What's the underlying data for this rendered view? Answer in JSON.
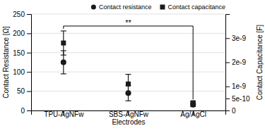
{
  "chart_data": {
    "type": "scatter",
    "categories": [
      "TPU-AgNFw",
      "SBS-AgNFw\nElectrodes",
      "Ag/AgCl"
    ],
    "series": [
      {
        "name": "Contact resistance",
        "color": "#1a1a1a",
        "marker": "circle",
        "values": [
          125,
          45,
          15
        ],
        "error_low": [
          30,
          20,
          5
        ],
        "error_high": [
          30,
          20,
          5
        ]
      },
      {
        "name": "Contact capacitance",
        "color": "#1a1a1a",
        "marker": "square",
        "axis": "y2",
        "values": [
          2.8e-09,
          1.1e-09,
          3.2e-10
        ],
        "error_low": [
          5e-10,
          4e-10,
          5e-11
        ],
        "error_high": [
          5e-10,
          4e-10,
          5e-11
        ]
      }
    ],
    "ylabel": "Contact Resistance [Ω]",
    "y2label": "Contact Capacitance [F]",
    "ylim": [
      0,
      250
    ],
    "yticks": [
      0,
      50,
      100,
      150,
      200,
      250
    ],
    "y2lim": [
      0,
      4e-09
    ],
    "y2ticks": [
      0,
      {
        "value": 5e-10,
        "label": "5e-10"
      },
      {
        "value": 1e-09,
        "label": "1e-9"
      },
      {
        "value": 2e-09,
        "label": "2e-9"
      },
      {
        "value": 3e-09,
        "label": "3e-9"
      }
    ],
    "annotation": "**",
    "grid": true,
    "legend": "upper right"
  }
}
